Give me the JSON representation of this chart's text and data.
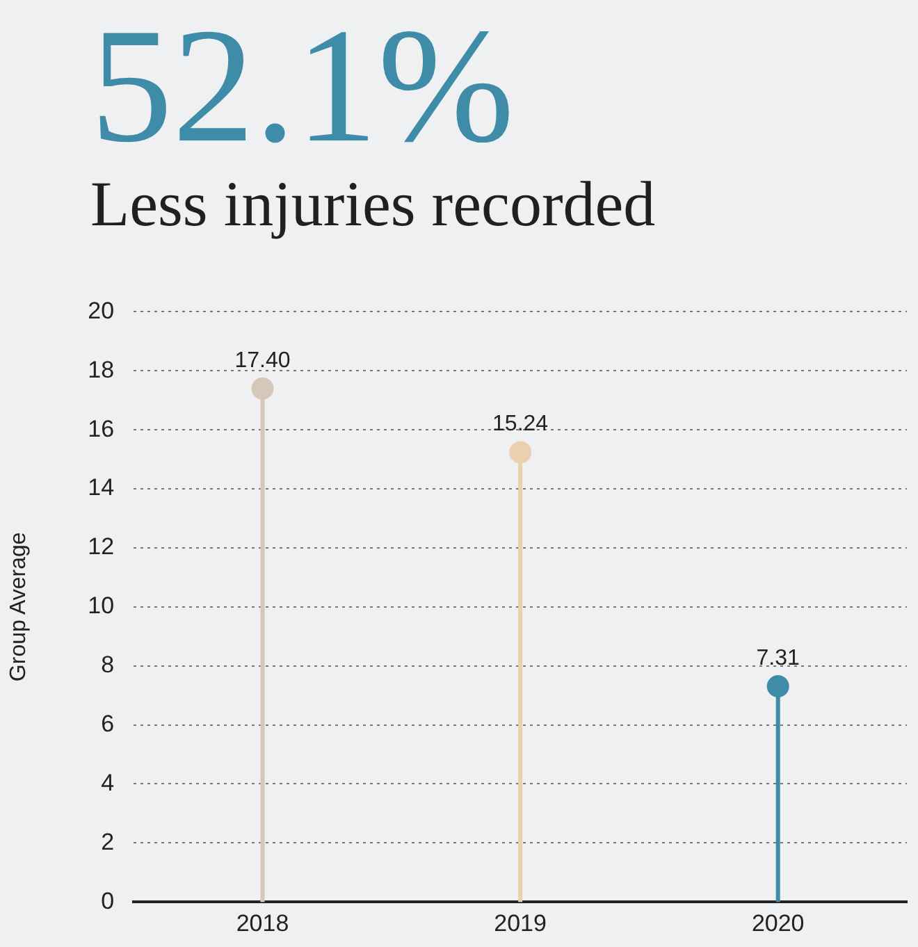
{
  "chart_data": {
    "type": "lollipop",
    "title": "52.1%",
    "subtitle": "Less injuries recorded",
    "ylabel": "Group Average",
    "categories": [
      "2018",
      "2019",
      "2020"
    ],
    "values": [
      17.4,
      15.24,
      7.31
    ],
    "colors": [
      "#d5c8b9",
      "#ebcfae",
      "#3f8ca8"
    ],
    "value_labels": [
      "17.40",
      "15.24",
      "7.31"
    ],
    "ylim": [
      0,
      20
    ],
    "yticks": [
      0,
      2,
      4,
      6,
      8,
      10,
      12,
      14,
      16,
      18,
      20
    ],
    "grid": "y",
    "legend": false
  }
}
